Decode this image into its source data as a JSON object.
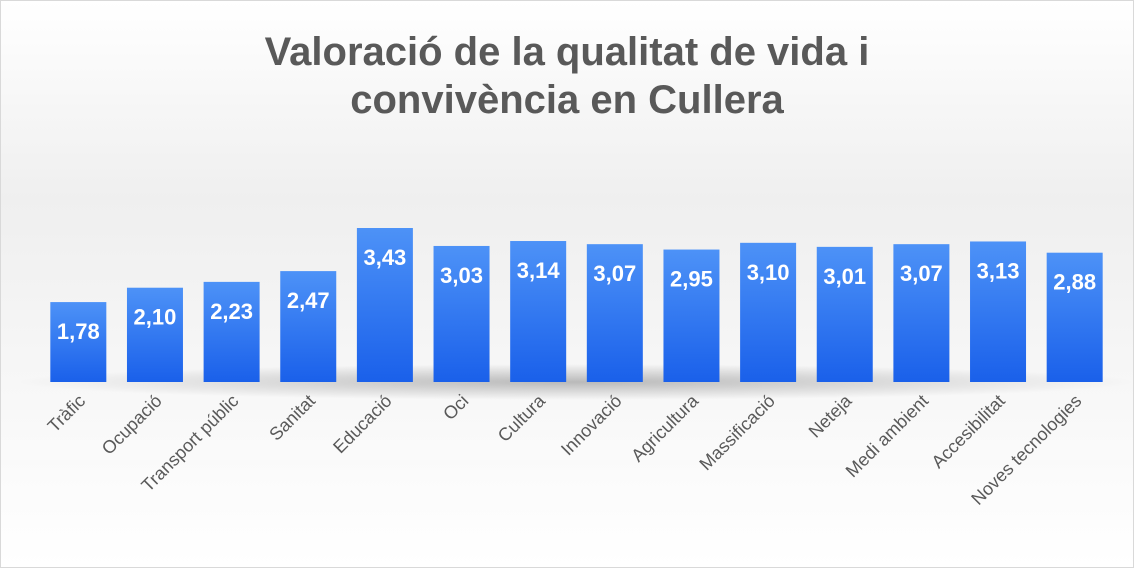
{
  "chart_data": {
    "type": "bar",
    "title": "Valoració de la qualitat de vida i convivència en Cullera",
    "categories": [
      "Tràfic",
      "Ocupació",
      "Transport públic",
      "Sanitat",
      "Educació",
      "Oci",
      "Cultura",
      "Innovació",
      "Agricultura",
      "Massificació",
      "Neteja",
      "Medi ambient",
      "Accesibilitat",
      "Noves tecnologies"
    ],
    "values": [
      1.78,
      2.1,
      2.23,
      2.47,
      3.43,
      3.03,
      3.14,
      3.07,
      2.95,
      3.1,
      3.01,
      3.07,
      3.13,
      2.88
    ],
    "value_labels": [
      "1,78",
      "2,10",
      "2,23",
      "2,47",
      "3,43",
      "3,03",
      "3,14",
      "3,07",
      "2,95",
      "3,10",
      "3,01",
      "3,07",
      "3,13",
      "2,88"
    ],
    "color": "#2f7af0"
  }
}
